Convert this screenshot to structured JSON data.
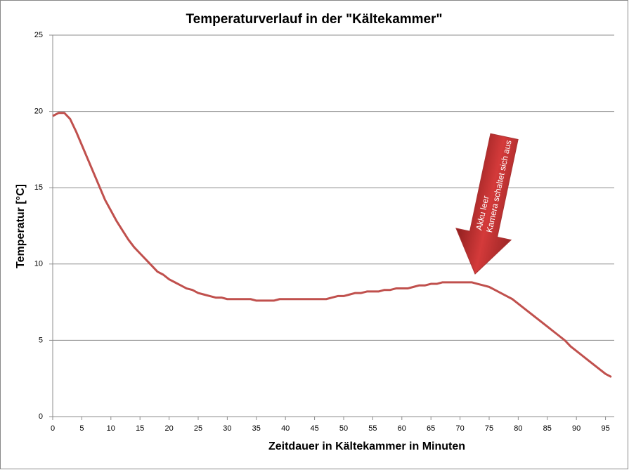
{
  "chart_data": {
    "type": "line",
    "title": "Temperaturverlauf in der \"Kältekammer\"",
    "x_label": "Zeitdauer in Kältekammer in Minuten",
    "y_label": "Temperatur  [°C]",
    "x": [
      0,
      1,
      2,
      3,
      4,
      5,
      6,
      7,
      8,
      9,
      10,
      11,
      12,
      13,
      14,
      15,
      16,
      17,
      18,
      19,
      20,
      21,
      22,
      23,
      24,
      25,
      26,
      27,
      28,
      29,
      30,
      31,
      32,
      33,
      34,
      35,
      36,
      37,
      38,
      39,
      40,
      41,
      42,
      43,
      44,
      45,
      46,
      47,
      48,
      49,
      50,
      51,
      52,
      53,
      54,
      55,
      56,
      57,
      58,
      59,
      60,
      61,
      62,
      63,
      64,
      65,
      66,
      67,
      68,
      69,
      70,
      71,
      72,
      73,
      74,
      75,
      76,
      77,
      78,
      79,
      80,
      81,
      82,
      83,
      84,
      85,
      86,
      87,
      88,
      89,
      90,
      91,
      92,
      93,
      94,
      95,
      96
    ],
    "values": [
      19.7,
      19.9,
      19.9,
      19.5,
      18.7,
      17.8,
      16.9,
      16.0,
      15.1,
      14.2,
      13.5,
      12.8,
      12.2,
      11.6,
      11.1,
      10.7,
      10.3,
      9.9,
      9.5,
      9.3,
      9.0,
      8.8,
      8.6,
      8.4,
      8.3,
      8.1,
      8.0,
      7.9,
      7.8,
      7.8,
      7.7,
      7.7,
      7.7,
      7.7,
      7.7,
      7.6,
      7.6,
      7.6,
      7.6,
      7.7,
      7.7,
      7.7,
      7.7,
      7.7,
      7.7,
      7.7,
      7.7,
      7.7,
      7.8,
      7.9,
      7.9,
      8.0,
      8.1,
      8.1,
      8.2,
      8.2,
      8.2,
      8.3,
      8.3,
      8.4,
      8.4,
      8.4,
      8.5,
      8.6,
      8.6,
      8.7,
      8.7,
      8.8,
      8.8,
      8.8,
      8.8,
      8.8,
      8.8,
      8.7,
      8.6,
      8.5,
      8.3,
      8.1,
      7.9,
      7.7,
      7.4,
      7.1,
      6.8,
      6.5,
      6.2,
      5.9,
      5.6,
      5.3,
      5.0,
      4.6,
      4.3,
      4.0,
      3.7,
      3.4,
      3.1,
      2.8,
      2.6
    ],
    "color": "#c0504d",
    "xlim": [
      0,
      96.5
    ],
    "xticks": [
      0,
      5,
      10,
      15,
      20,
      25,
      30,
      35,
      40,
      45,
      50,
      55,
      60,
      65,
      70,
      75,
      80,
      85,
      90,
      95
    ],
    "ylim": [
      0,
      25
    ],
    "yticks": [
      0,
      5,
      10,
      15,
      20,
      25
    ],
    "grid": true,
    "annotations": [
      "Akku leer",
      "Kamera schaltet sich aus"
    ]
  }
}
